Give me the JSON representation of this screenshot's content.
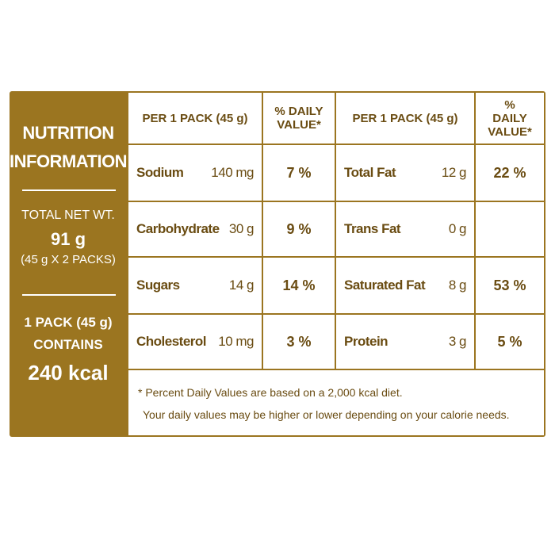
{
  "side_panel": {
    "title": [
      "NUTRITION",
      "INFORMATION"
    ],
    "net_weight_label": "TOTAL NET WT.",
    "net_weight": "91 g",
    "packs": "(45 g X 2 PACKS)",
    "pack_label": [
      "1 PACK (45 g)",
      "CONTAINS"
    ],
    "energy": "240 kcal"
  },
  "table": {
    "headers": [
      "PER 1 PACK (45 g)",
      "% DAILY VALUE*",
      "PER 1 PACK (45 g)",
      "% DAILY VALUE*"
    ],
    "rows": [
      [
        {
          "name": "Sodium",
          "amount": "140 mg",
          "dv": "7 %"
        },
        {
          "name": "Total Fat",
          "amount": "12 g",
          "dv": "22 %"
        }
      ],
      [
        {
          "name": "Carbohydrate",
          "amount": "30 g",
          "dv": "9 %"
        },
        {
          "name": "Trans Fat",
          "amount": "0 g"
        }
      ],
      [
        {
          "name": "Sugars",
          "amount": "14 g",
          "dv": "14 %"
        },
        {
          "name": "Saturated Fat",
          "amount": "8 g",
          "dv": "53 %"
        }
      ],
      [
        {
          "name": "Cholesterol",
          "amount": "10 mg",
          "dv": "3 %"
        },
        {
          "name": "Protein",
          "amount": "3 g",
          "dv": "5 %"
        }
      ]
    ]
  },
  "footnote": [
    "* Percent Daily Values are based on a 2,000 kcal diet.",
    "Your daily values may be higher or lower depending on your calorie needs."
  ]
}
